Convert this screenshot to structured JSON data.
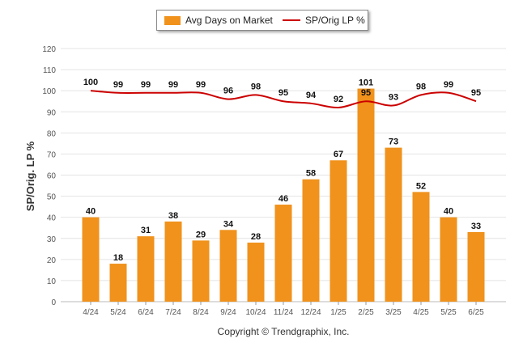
{
  "colors": {
    "bar": "#f0921c",
    "line": "#cc0000",
    "grid": "#e4e4e4",
    "axis_text": "#555555"
  },
  "legend": {
    "bar_label": "Avg Days on Market",
    "line_label": "SP/Orig LP %"
  },
  "copyright": "Copyright © Trendgraphix, Inc.",
  "chart_data": {
    "type": "bar",
    "categories": [
      "4/24",
      "5/24",
      "6/24",
      "7/24",
      "8/24",
      "9/24",
      "10/24",
      "11/24",
      "12/24",
      "1/25",
      "2/25",
      "3/25",
      "4/25",
      "5/25",
      "6/25"
    ],
    "series": [
      {
        "name": "Avg Days on Market",
        "type": "bar",
        "values": [
          40,
          18,
          31,
          38,
          29,
          34,
          28,
          46,
          58,
          67,
          101,
          73,
          52,
          40,
          33
        ]
      },
      {
        "name": "SP/Orig LP %",
        "type": "line",
        "values": [
          100,
          99,
          99,
          99,
          99,
          96,
          98,
          95,
          94,
          92,
          95,
          93,
          98,
          99,
          95
        ]
      }
    ],
    "ylabel": "SP/Orig. LP %",
    "ylim": [
      0,
      120
    ],
    "yticks": [
      0,
      10,
      20,
      30,
      40,
      50,
      60,
      70,
      80,
      90,
      100,
      110,
      120
    ],
    "grid": true,
    "legend_position": "top-center"
  }
}
